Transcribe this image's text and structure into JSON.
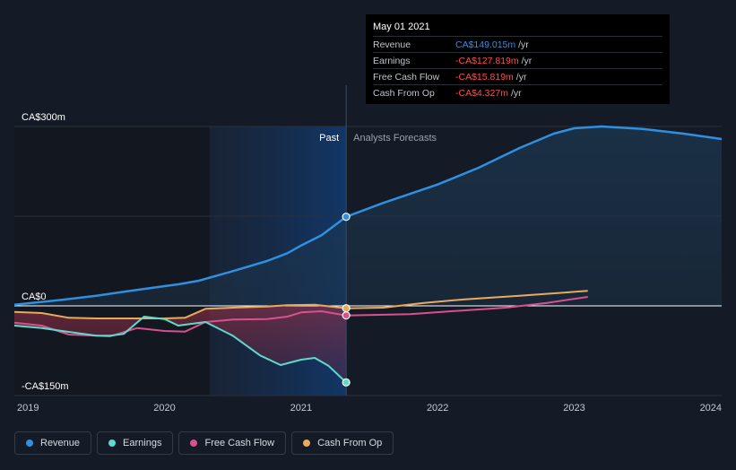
{
  "tooltip": {
    "date": "May 01 2021",
    "rows": [
      {
        "name": "Revenue",
        "value": "CA$149.015m",
        "unit": "/yr",
        "sign": "pos"
      },
      {
        "name": "Earnings",
        "value": "-CA$127.819m",
        "unit": "/yr",
        "sign": "neg"
      },
      {
        "name": "Free Cash Flow",
        "value": "-CA$15.819m",
        "unit": "/yr",
        "sign": "neg"
      },
      {
        "name": "Cash From Op",
        "value": "-CA$4.327m",
        "unit": "/yr",
        "sign": "neg"
      }
    ]
  },
  "legend": [
    {
      "label": "Revenue",
      "color": "#2f8fe0"
    },
    {
      "label": "Earnings",
      "color": "#5fd9cc"
    },
    {
      "label": "Free Cash Flow",
      "color": "#d9508e"
    },
    {
      "label": "Cash From Op",
      "color": "#e8ab5e"
    }
  ],
  "chart_data": {
    "type": "line",
    "title": "",
    "xlabel": "",
    "ylabel": "",
    "x_range": [
      2018.9,
      2024.08
    ],
    "ylim": [
      -150,
      300
    ],
    "y_tick_labels": [
      {
        "value": 300,
        "label": "CA$300m"
      },
      {
        "value": 0,
        "label": "CA$0"
      },
      {
        "value": -150,
        "label": "-CA$150m"
      }
    ],
    "x_ticks": [
      2019,
      2020,
      2021,
      2022,
      2023,
      2024
    ],
    "x_tick_labels": [
      "2019",
      "2020",
      "2021",
      "2022",
      "2023",
      "2024"
    ],
    "divider_x": 2021.33,
    "highlight_start_x": 2020.33,
    "past_label": "Past",
    "forecast_label": "Analysts Forecasts",
    "series": [
      {
        "name": "Revenue",
        "color": "#2f8fe0",
        "fill": true,
        "points": [
          [
            2018.9,
            2
          ],
          [
            2019.25,
            10
          ],
          [
            2019.5,
            17
          ],
          [
            2019.75,
            25
          ],
          [
            2020.0,
            33
          ],
          [
            2020.1,
            36
          ],
          [
            2020.25,
            42
          ],
          [
            2020.5,
            58
          ],
          [
            2020.75,
            75
          ],
          [
            2020.9,
            88
          ],
          [
            2021.0,
            101
          ],
          [
            2021.15,
            118
          ],
          [
            2021.33,
            149
          ]
        ],
        "forecast": [
          [
            2021.33,
            149
          ],
          [
            2021.6,
            172
          ],
          [
            2022.0,
            203
          ],
          [
            2022.3,
            231
          ],
          [
            2022.6,
            264
          ],
          [
            2022.85,
            288
          ],
          [
            2023.0,
            297
          ],
          [
            2023.2,
            300
          ],
          [
            2023.5,
            296
          ],
          [
            2023.8,
            288
          ],
          [
            2024.08,
            279
          ]
        ]
      },
      {
        "name": "Earnings",
        "color": "#5fd9cc",
        "points": [
          [
            2018.9,
            -33
          ],
          [
            2019.1,
            -37
          ],
          [
            2019.25,
            -42
          ],
          [
            2019.5,
            -50
          ],
          [
            2019.6,
            -50
          ],
          [
            2019.7,
            -47
          ],
          [
            2019.85,
            -18
          ],
          [
            2020.0,
            -22
          ],
          [
            2020.1,
            -33
          ],
          [
            2020.3,
            -27
          ],
          [
            2020.5,
            -50
          ],
          [
            2020.7,
            -83
          ],
          [
            2020.85,
            -99
          ],
          [
            2021.0,
            -90
          ],
          [
            2021.1,
            -87
          ],
          [
            2021.2,
            -100
          ],
          [
            2021.33,
            -128
          ]
        ],
        "forecast": []
      },
      {
        "name": "Free Cash Flow",
        "color": "#d9508e",
        "points": [
          [
            2018.9,
            -28
          ],
          [
            2019.1,
            -33
          ],
          [
            2019.3,
            -48
          ],
          [
            2019.5,
            -50
          ],
          [
            2019.6,
            -51
          ],
          [
            2019.8,
            -37
          ],
          [
            2020.0,
            -42
          ],
          [
            2020.15,
            -43
          ],
          [
            2020.3,
            -27
          ],
          [
            2020.5,
            -23
          ],
          [
            2020.75,
            -22
          ],
          [
            2020.9,
            -18
          ],
          [
            2021.0,
            -11
          ],
          [
            2021.15,
            -9
          ],
          [
            2021.33,
            -16
          ]
        ],
        "forecast": [
          [
            2021.33,
            -16
          ],
          [
            2021.8,
            -14
          ],
          [
            2022.1,
            -9
          ],
          [
            2022.5,
            -3
          ],
          [
            2022.8,
            5
          ],
          [
            2023.1,
            15
          ]
        ]
      },
      {
        "name": "Cash From Op",
        "color": "#e8ab5e",
        "points": [
          [
            2018.9,
            -10
          ],
          [
            2019.1,
            -12
          ],
          [
            2019.3,
            -20
          ],
          [
            2019.5,
            -21
          ],
          [
            2019.75,
            -21
          ],
          [
            2020.0,
            -21
          ],
          [
            2020.15,
            -20
          ],
          [
            2020.3,
            -5
          ],
          [
            2020.5,
            -3
          ],
          [
            2020.75,
            -1
          ],
          [
            2020.9,
            1
          ],
          [
            2021.1,
            2
          ],
          [
            2021.33,
            -4
          ]
        ],
        "forecast": [
          [
            2021.33,
            -4
          ],
          [
            2021.6,
            -3
          ],
          [
            2021.9,
            5
          ],
          [
            2022.2,
            11
          ],
          [
            2022.6,
            17
          ],
          [
            2023.1,
            25
          ]
        ]
      }
    ],
    "markers": [
      {
        "series": "Revenue",
        "x": 2021.33,
        "y": 149
      },
      {
        "series": "Earnings",
        "x": 2021.33,
        "y": -128
      },
      {
        "series": "Free Cash Flow",
        "x": 2021.33,
        "y": -16
      },
      {
        "series": "Cash From Op",
        "x": 2021.33,
        "y": -4
      }
    ]
  }
}
